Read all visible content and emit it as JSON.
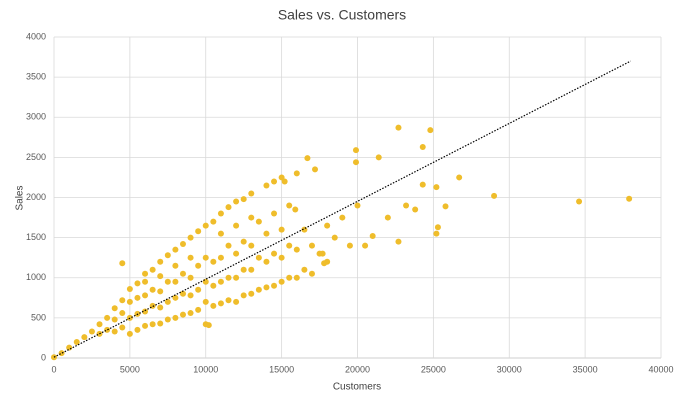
{
  "chart_data": {
    "type": "scatter",
    "title": "Sales vs. Customers",
    "x_label": "Customers",
    "y_label": "Sales",
    "color": "#efbd2b",
    "grid": true,
    "xlim": [
      0,
      40000
    ],
    "xticks": [
      0,
      5000,
      10000,
      15000,
      20000,
      25000,
      30000,
      35000,
      40000
    ],
    "ylim": [
      0,
      4000
    ],
    "yticks": [
      0,
      500,
      1000,
      1500,
      2000,
      2500,
      3000,
      3500,
      4000
    ],
    "x": [
      0,
      500,
      1000,
      1500,
      2000,
      2500,
      3000,
      3000,
      3500,
      3500,
      4000,
      4000,
      4000,
      4500,
      4500,
      4500,
      4500,
      5000,
      5000,
      5000,
      5000,
      5500,
      5500,
      5500,
      5500,
      6000,
      6000,
      6000,
      6000,
      6000,
      6500,
      6500,
      6500,
      6500,
      7000,
      7000,
      7000,
      7000,
      7000,
      7500,
      7500,
      7500,
      7500,
      8000,
      8000,
      8000,
      8000,
      8000,
      8500,
      8500,
      8500,
      8500,
      9000,
      9000,
      9000,
      9000,
      9000,
      9500,
      9500,
      9500,
      9500,
      10000,
      10000,
      10000,
      10000,
      10000,
      10500,
      10500,
      10500,
      10500,
      11000,
      11000,
      11000,
      11000,
      11000,
      11500,
      11500,
      11500,
      11500,
      12000,
      12000,
      12000,
      12000,
      12000,
      12500,
      12500,
      12500,
      12500,
      13000,
      13000,
      13000,
      13000,
      13000,
      13500,
      13500,
      13500,
      14000,
      14000,
      14000,
      14000,
      14500,
      14500,
      14500,
      15000,
      15000,
      15000,
      15000,
      15500,
      15500,
      15500,
      16000,
      16000,
      16000,
      16500,
      16500,
      17000,
      17000,
      17500,
      18000,
      18000,
      18500,
      19000,
      19500,
      20000,
      37900,
      34600,
      29000,
      26700,
      25200,
      24800,
      22700,
      24300,
      25800,
      25300,
      25200,
      24300,
      19900,
      21400,
      16700,
      19900,
      23200,
      23800,
      22000,
      21000,
      22700,
      20500,
      17700,
      17800,
      15900,
      14500,
      15200,
      17200,
      10200
    ],
    "values": [
      10,
      60,
      130,
      200,
      260,
      330,
      300,
      420,
      350,
      500,
      330,
      480,
      620,
      380,
      560,
      720,
      1180,
      300,
      500,
      700,
      860,
      350,
      550,
      750,
      930,
      400,
      580,
      780,
      950,
      1050,
      420,
      650,
      850,
      1100,
      430,
      630,
      830,
      1020,
      1200,
      480,
      700,
      950,
      1280,
      500,
      750,
      950,
      1150,
      1350,
      540,
      800,
      1050,
      1420,
      560,
      780,
      1000,
      1250,
      1500,
      600,
      850,
      1150,
      1580,
      420,
      700,
      950,
      1250,
      1650,
      650,
      900,
      1200,
      1700,
      680,
      950,
      1250,
      1550,
      1800,
      720,
      1000,
      1400,
      1880,
      700,
      1000,
      1300,
      1650,
      1950,
      780,
      1100,
      1450,
      1980,
      800,
      1100,
      1400,
      1750,
      2050,
      850,
      1250,
      1700,
      880,
      1200,
      1550,
      2150,
      900,
      1300,
      1800,
      950,
      1250,
      1600,
      2250,
      1000,
      1400,
      1900,
      1000,
      1350,
      2300,
      1100,
      1600,
      1050,
      1400,
      1300,
      1200,
      1650,
      1500,
      1750,
      1400,
      1900,
      1985,
      1950,
      2020,
      2250,
      2130,
      2840,
      2870,
      2630,
      1890,
      1630,
      1550,
      2160,
      2590,
      2500,
      2490,
      2440,
      1900,
      1850,
      1750,
      1520,
      1450,
      1400,
      1300,
      1180,
      1850,
      2200,
      2200,
      2350,
      410
    ],
    "trendline": {
      "x": [
        0,
        38000
      ],
      "values": [
        10,
        3700
      ]
    }
  }
}
